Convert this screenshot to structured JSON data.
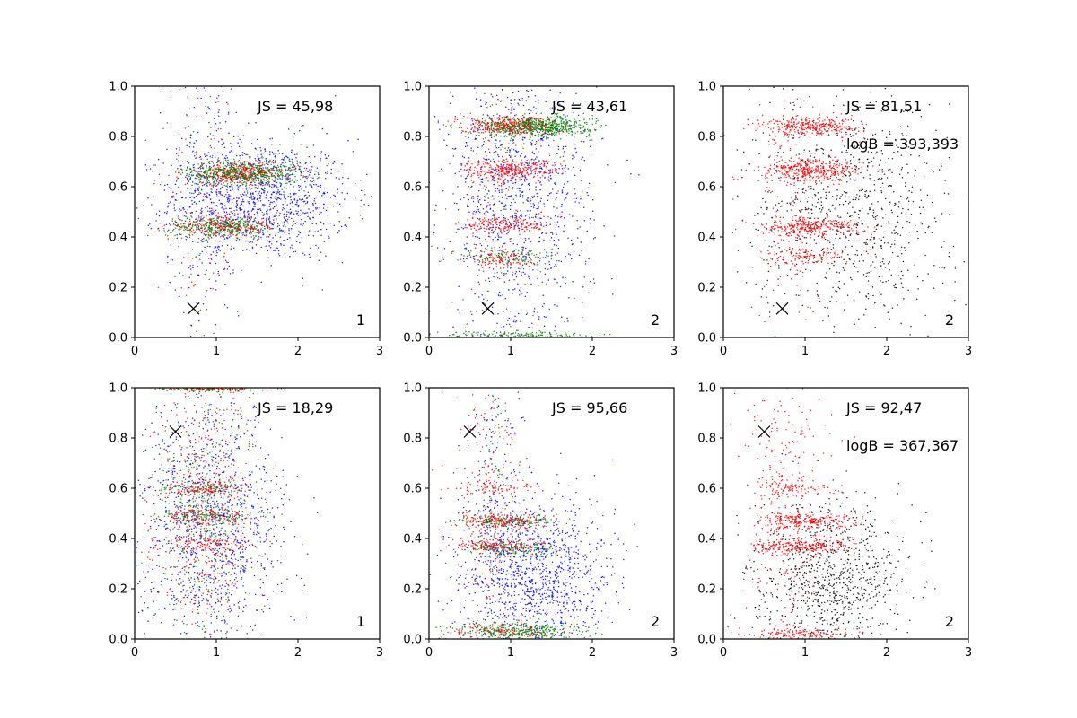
{
  "colors": {
    "blue": "#0000ff",
    "green": "#008000",
    "red": "#ff0000",
    "black": "#000000"
  },
  "chart_data": [
    {
      "type": "scatter",
      "panel_label": "1",
      "js_text": "JS = 45,98",
      "logb_text": "",
      "marker_x": 0.72,
      "marker_y": 0.115,
      "xlim": [
        0,
        3
      ],
      "ylim": [
        0,
        1
      ],
      "xticks": [
        "0",
        "1",
        "2",
        "3"
      ],
      "yticks": [
        "0.0",
        "0.2",
        "0.4",
        "0.6",
        "0.8",
        "1.0"
      ],
      "series": [
        {
          "name": "blue",
          "color": "#0000ff",
          "clusters": [
            {
              "x": 1.55,
              "y": 0.55,
              "sx": 0.55,
              "sy": 0.12,
              "n": 1100
            },
            {
              "x": 0.9,
              "y": 0.6,
              "sx": 0.25,
              "sy": 0.3,
              "n": 250
            }
          ]
        },
        {
          "name": "green",
          "color": "#008000",
          "clusters": [
            {
              "x": 1.35,
              "y": 0.655,
              "sx": 0.35,
              "sy": 0.025,
              "n": 650
            },
            {
              "x": 1.1,
              "y": 0.44,
              "sx": 0.35,
              "sy": 0.02,
              "n": 350
            },
            {
              "x": 0.75,
              "y": 0.5,
              "sx": 0.2,
              "sy": 0.3,
              "n": 80
            }
          ]
        },
        {
          "name": "red",
          "color": "#ff0000",
          "clusters": [
            {
              "x": 1.3,
              "y": 0.655,
              "sx": 0.35,
              "sy": 0.025,
              "n": 300
            },
            {
              "x": 1.1,
              "y": 0.44,
              "sx": 0.35,
              "sy": 0.02,
              "n": 220
            },
            {
              "x": 0.8,
              "y": 0.5,
              "sx": 0.25,
              "sy": 0.3,
              "n": 120
            }
          ]
        }
      ]
    },
    {
      "type": "scatter",
      "panel_label": "2",
      "js_text": "JS = 43,61",
      "logb_text": "",
      "marker_x": 0.72,
      "marker_y": 0.115,
      "xlim": [
        0,
        3
      ],
      "ylim": [
        0,
        1
      ],
      "xticks": [
        "0",
        "1",
        "2",
        "3"
      ],
      "yticks": [
        "0.0",
        "0.2",
        "0.4",
        "0.6",
        "0.8",
        "1.0"
      ],
      "series": [
        {
          "name": "blue",
          "color": "#0000ff",
          "clusters": [
            {
              "x": 1.1,
              "y": 0.55,
              "sx": 0.45,
              "sy": 0.28,
              "n": 1100
            }
          ]
        },
        {
          "name": "green",
          "color": "#008000",
          "clusters": [
            {
              "x": 1.3,
              "y": 0.84,
              "sx": 0.35,
              "sy": 0.02,
              "n": 700
            },
            {
              "x": 1.0,
              "y": 0.32,
              "sx": 0.3,
              "sy": 0.02,
              "n": 120
            },
            {
              "x": 1.1,
              "y": 0.01,
              "sx": 0.45,
              "sy": 0.008,
              "n": 150
            },
            {
              "x": 0.9,
              "y": 0.5,
              "sx": 0.25,
              "sy": 0.3,
              "n": 100
            }
          ]
        },
        {
          "name": "red",
          "color": "#ff0000",
          "clusters": [
            {
              "x": 0.95,
              "y": 0.845,
              "sx": 0.3,
              "sy": 0.02,
              "n": 280
            },
            {
              "x": 1.0,
              "y": 0.665,
              "sx": 0.3,
              "sy": 0.022,
              "n": 330
            },
            {
              "x": 0.95,
              "y": 0.45,
              "sx": 0.28,
              "sy": 0.018,
              "n": 180
            },
            {
              "x": 0.9,
              "y": 0.31,
              "sx": 0.25,
              "sy": 0.018,
              "n": 100
            },
            {
              "x": 0.8,
              "y": 0.5,
              "sx": 0.2,
              "sy": 0.3,
              "n": 100
            }
          ]
        }
      ]
    },
    {
      "type": "scatter",
      "panel_label": "2",
      "js_text": "JS = 81,51",
      "logb_text": "logB = 393,393",
      "marker_x": 0.72,
      "marker_y": 0.115,
      "xlim": [
        0,
        3
      ],
      "ylim": [
        0,
        1
      ],
      "xticks": [
        "0",
        "1",
        "2",
        "3"
      ],
      "yticks": [
        "0.0",
        "0.2",
        "0.4",
        "0.6",
        "0.8",
        "1.0"
      ],
      "series": [
        {
          "name": "black",
          "color": "#000000",
          "clusters": [
            {
              "x": 1.55,
              "y": 0.5,
              "sx": 0.6,
              "sy": 0.22,
              "n": 900
            }
          ]
        },
        {
          "name": "red",
          "color": "#ff0000",
          "clusters": [
            {
              "x": 1.1,
              "y": 0.84,
              "sx": 0.3,
              "sy": 0.02,
              "n": 320
            },
            {
              "x": 1.1,
              "y": 0.665,
              "sx": 0.3,
              "sy": 0.022,
              "n": 380
            },
            {
              "x": 1.05,
              "y": 0.44,
              "sx": 0.3,
              "sy": 0.018,
              "n": 280
            },
            {
              "x": 1.0,
              "y": 0.32,
              "sx": 0.25,
              "sy": 0.018,
              "n": 120
            },
            {
              "x": 0.8,
              "y": 0.5,
              "sx": 0.25,
              "sy": 0.3,
              "n": 150
            }
          ]
        }
      ]
    },
    {
      "type": "scatter",
      "panel_label": "1",
      "js_text": "JS = 18,29",
      "logb_text": "",
      "marker_x": 0.5,
      "marker_y": 0.825,
      "xlim": [
        0,
        3
      ],
      "ylim": [
        0,
        1
      ],
      "xticks": [
        "0",
        "1",
        "2",
        "3"
      ],
      "yticks": [
        "0.0",
        "0.2",
        "0.4",
        "0.6",
        "0.8",
        "1.0"
      ],
      "series": [
        {
          "name": "blue",
          "color": "#0000ff",
          "clusters": [
            {
              "x": 0.95,
              "y": 0.45,
              "sx": 0.45,
              "sy": 0.25,
              "n": 1100
            }
          ]
        },
        {
          "name": "green",
          "color": "#008000",
          "clusters": [
            {
              "x": 0.85,
              "y": 0.5,
              "sx": 0.3,
              "sy": 0.28,
              "n": 450
            },
            {
              "x": 0.9,
              "y": 0.6,
              "sx": 0.3,
              "sy": 0.015,
              "n": 100
            },
            {
              "x": 0.9,
              "y": 0.49,
              "sx": 0.3,
              "sy": 0.015,
              "n": 120
            },
            {
              "x": 0.9,
              "y": 0.995,
              "sx": 0.35,
              "sy": 0.006,
              "n": 100
            }
          ]
        },
        {
          "name": "red",
          "color": "#ff0000",
          "clusters": [
            {
              "x": 0.85,
              "y": 0.5,
              "sx": 0.3,
              "sy": 0.28,
              "n": 500
            },
            {
              "x": 0.9,
              "y": 0.6,
              "sx": 0.3,
              "sy": 0.015,
              "n": 100
            },
            {
              "x": 0.9,
              "y": 0.49,
              "sx": 0.3,
              "sy": 0.015,
              "n": 100
            },
            {
              "x": 0.9,
              "y": 0.38,
              "sx": 0.3,
              "sy": 0.015,
              "n": 100
            },
            {
              "x": 0.9,
              "y": 0.995,
              "sx": 0.3,
              "sy": 0.006,
              "n": 80
            }
          ]
        }
      ]
    },
    {
      "type": "scatter",
      "panel_label": "2",
      "js_text": "JS = 95,66",
      "logb_text": "",
      "marker_x": 0.5,
      "marker_y": 0.825,
      "xlim": [
        0,
        3
      ],
      "ylim": [
        0,
        1
      ],
      "xticks": [
        "0",
        "1",
        "2",
        "3"
      ],
      "yticks": [
        "0.0",
        "0.2",
        "0.4",
        "0.6",
        "0.8",
        "1.0"
      ],
      "series": [
        {
          "name": "blue",
          "color": "#0000ff",
          "clusters": [
            {
              "x": 1.3,
              "y": 0.25,
              "sx": 0.45,
              "sy": 0.15,
              "n": 1100
            },
            {
              "x": 0.8,
              "y": 0.55,
              "sx": 0.25,
              "sy": 0.3,
              "n": 200
            }
          ]
        },
        {
          "name": "green",
          "color": "#008000",
          "clusters": [
            {
              "x": 1.15,
              "y": 0.03,
              "sx": 0.4,
              "sy": 0.018,
              "n": 350
            },
            {
              "x": 1.0,
              "y": 0.47,
              "sx": 0.3,
              "sy": 0.015,
              "n": 150
            },
            {
              "x": 1.0,
              "y": 0.36,
              "sx": 0.3,
              "sy": 0.015,
              "n": 150
            },
            {
              "x": 0.8,
              "y": 0.55,
              "sx": 0.2,
              "sy": 0.3,
              "n": 120
            }
          ]
        },
        {
          "name": "red",
          "color": "#ff0000",
          "clusters": [
            {
              "x": 0.9,
              "y": 0.47,
              "sx": 0.3,
              "sy": 0.015,
              "n": 180
            },
            {
              "x": 0.9,
              "y": 0.37,
              "sx": 0.3,
              "sy": 0.015,
              "n": 160
            },
            {
              "x": 0.85,
              "y": 0.6,
              "sx": 0.25,
              "sy": 0.015,
              "n": 70
            },
            {
              "x": 0.9,
              "y": 0.03,
              "sx": 0.35,
              "sy": 0.018,
              "n": 120
            },
            {
              "x": 0.75,
              "y": 0.55,
              "sx": 0.2,
              "sy": 0.3,
              "n": 200
            }
          ]
        }
      ]
    },
    {
      "type": "scatter",
      "panel_label": "2",
      "js_text": "JS = 92,47",
      "logb_text": "logB = 367,367",
      "marker_x": 0.5,
      "marker_y": 0.825,
      "xlim": [
        0,
        3
      ],
      "ylim": [
        0,
        1
      ],
      "xticks": [
        "0",
        "1",
        "2",
        "3"
      ],
      "yticks": [
        "0.0",
        "0.2",
        "0.4",
        "0.6",
        "0.8",
        "1.0"
      ],
      "series": [
        {
          "name": "black",
          "color": "#000000",
          "clusters": [
            {
              "x": 1.3,
              "y": 0.25,
              "sx": 0.45,
              "sy": 0.15,
              "n": 900
            }
          ]
        },
        {
          "name": "red",
          "color": "#ff0000",
          "clusters": [
            {
              "x": 1.0,
              "y": 0.47,
              "sx": 0.3,
              "sy": 0.015,
              "n": 220
            },
            {
              "x": 1.0,
              "y": 0.37,
              "sx": 0.3,
              "sy": 0.015,
              "n": 220
            },
            {
              "x": 0.9,
              "y": 0.6,
              "sx": 0.25,
              "sy": 0.015,
              "n": 80
            },
            {
              "x": 0.95,
              "y": 0.02,
              "sx": 0.35,
              "sy": 0.015,
              "n": 150
            },
            {
              "x": 0.75,
              "y": 0.55,
              "sx": 0.25,
              "sy": 0.3,
              "n": 350
            }
          ]
        }
      ]
    }
  ]
}
